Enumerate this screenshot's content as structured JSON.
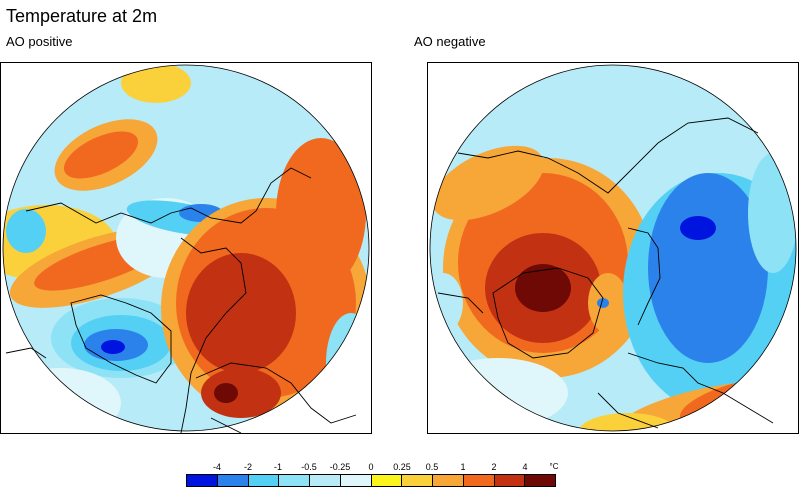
{
  "title": "Temperature at 2m",
  "panels": [
    {
      "label": "AO positive"
    },
    {
      "label": "AO negative"
    }
  ],
  "colorbar": {
    "ticks": [
      "-4",
      "-2",
      "-1",
      "-0.5",
      "-0.25",
      "0",
      "0.25",
      "0.5",
      "1",
      "2",
      "4"
    ],
    "unit": "°C",
    "colors": [
      "#0014e0",
      "#2c82eb",
      "#55d0f5",
      "#8ee2f6",
      "#b7ebf8",
      "#dff6fa",
      "#fbf51c",
      "#fbd13b",
      "#f7a638",
      "#f1691f",
      "#c23212",
      "#6e0905"
    ]
  }
}
